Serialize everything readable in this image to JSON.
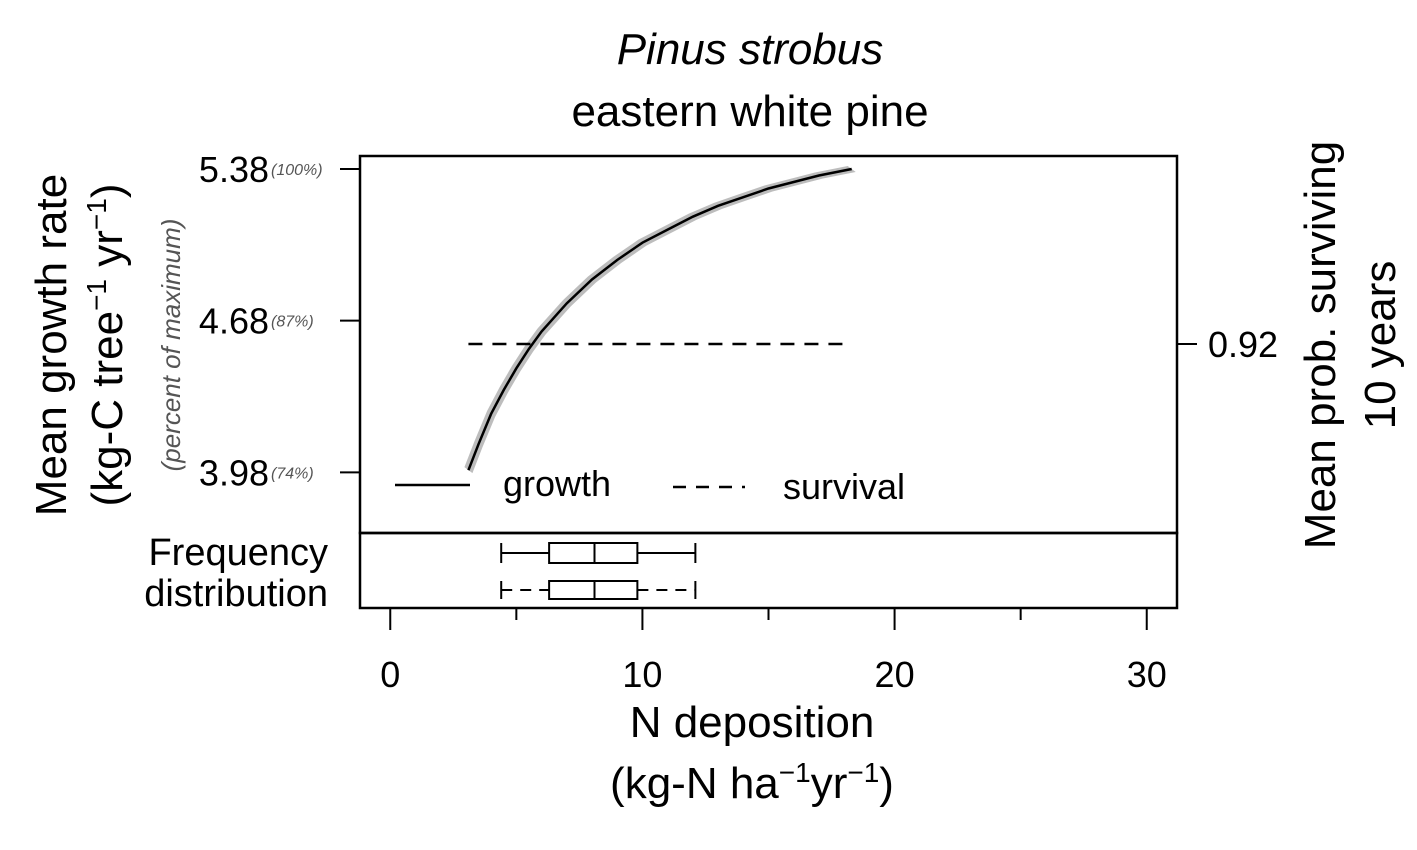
{
  "title": {
    "species_latin": "Pinus strobus",
    "common_name": "eastern white pine"
  },
  "axes": {
    "y_left_label_line1": "Mean growth rate",
    "y_left_label_line2_prefix": "(kg-C tree",
    "y_left_label_line2_mid": " yr",
    "y_left_label_line2_suffix": ")",
    "y_left_sup": "−1",
    "y_left_sublabel": "(percent of maximum)",
    "y_right_label_line1": "Mean prob. surviving",
    "y_right_label_line2": "10 years",
    "x_label_line1": "N deposition",
    "x_label_line2_prefix": "(kg-N ha",
    "x_label_line2_mid": "yr",
    "x_label_line2_suffix": ")",
    "x_sup": "−1",
    "freq_label_line1": "Frequency",
    "freq_label_line2": "distribution"
  },
  "chart_data": {
    "type": "line",
    "xlim": [
      -1.2,
      31.2
    ],
    "ylim": [
      3.7,
      5.44
    ],
    "x_ticks": [
      0,
      10,
      20,
      30
    ],
    "x_tick_labels": [
      "0",
      "10",
      "20",
      "30"
    ],
    "y_left_ticks": [
      {
        "value": 3.98,
        "label": "3.98",
        "pct": "(74%)"
      },
      {
        "value": 4.68,
        "label": "4.68",
        "pct": "(87%)"
      },
      {
        "value": 5.38,
        "label": "5.38",
        "pct": "(100%)"
      }
    ],
    "y_right_ticks": [
      {
        "value": 0.92,
        "label": "0.92"
      }
    ],
    "series": [
      {
        "name": "growth",
        "style": "solid",
        "color": "#000000",
        "band_color": "#bdbdbd",
        "x": [
          3.1,
          3.5,
          4.0,
          4.5,
          5.0,
          5.5,
          6.0,
          7.0,
          8.0,
          9.0,
          10.0,
          11.0,
          12.0,
          13.0,
          14.0,
          15.0,
          16.0,
          17.0,
          18.3
        ],
        "y": [
          3.99,
          4.11,
          4.25,
          4.36,
          4.46,
          4.55,
          4.63,
          4.76,
          4.87,
          4.96,
          5.04,
          5.1,
          5.16,
          5.21,
          5.25,
          5.29,
          5.32,
          5.35,
          5.38
        ]
      },
      {
        "name": "survival",
        "style": "dashed",
        "color": "#000000",
        "x": [
          3.1,
          18.3
        ],
        "y_right": [
          0.92,
          0.92
        ]
      }
    ],
    "boxplots": [
      {
        "style": "solid",
        "whisker_low": 4.4,
        "q1": 6.3,
        "median": 8.1,
        "q3": 9.8,
        "whisker_high": 12.1
      },
      {
        "style": "dashed",
        "whisker_low": 4.4,
        "q1": 6.3,
        "median": 8.1,
        "q3": 9.8,
        "whisker_high": 12.1
      }
    ],
    "legend": {
      "placement": "bottom-left",
      "entries": [
        {
          "label": "growth",
          "style": "solid"
        },
        {
          "label": "survival",
          "style": "dashed"
        }
      ]
    }
  }
}
